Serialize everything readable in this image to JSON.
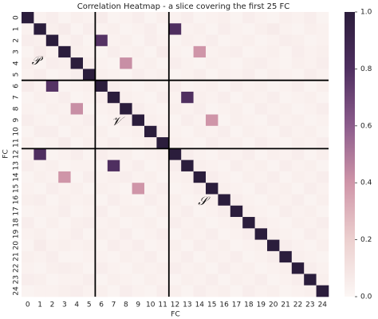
{
  "chart_data": {
    "type": "heatmap",
    "title": "Correlation Heatmap - a slice covering the first 25 FC",
    "x_label": "FC",
    "y_label": "FC",
    "x_categories": [
      "0",
      "1",
      "2",
      "3",
      "4",
      "5",
      "6",
      "7",
      "8",
      "9",
      "10",
      "11",
      "12",
      "13",
      "14",
      "15",
      "16",
      "17",
      "18",
      "19",
      "20",
      "21",
      "22",
      "23",
      "24"
    ],
    "y_categories": [
      "0",
      "1",
      "2",
      "3",
      "4",
      "5",
      "6",
      "7",
      "8",
      "9",
      "10",
      "11",
      "12",
      "13",
      "14",
      "15",
      "16",
      "17",
      "18",
      "19",
      "20",
      "21",
      "22",
      "23",
      "24"
    ],
    "values": [
      [
        1,
        0.03,
        0.05,
        0.02,
        0.04,
        0.03,
        0.06,
        0.02,
        0.03,
        0.05,
        0.02,
        0.04,
        0.03,
        0.05,
        0.02,
        0.03,
        0.04,
        0.02,
        0.05,
        0.03,
        0.02,
        0.04,
        0.03,
        0.05,
        0.02
      ],
      [
        0.03,
        1,
        0.04,
        0.06,
        0.02,
        0.05,
        0.03,
        0.04,
        0.02,
        0.03,
        0.05,
        0.02,
        0.8,
        0.03,
        0.04,
        0.02,
        0.05,
        0.03,
        0.02,
        0.04,
        0.06,
        0.03,
        0.02,
        0.04,
        0.03
      ],
      [
        0.05,
        0.04,
        1,
        0.03,
        0.05,
        0.02,
        0.78,
        0.03,
        0.04,
        0.02,
        0.05,
        0.03,
        0.02,
        0.04,
        0.03,
        0.05,
        0.02,
        0.03,
        0.04,
        0.02,
        0.03,
        0.05,
        0.04,
        0.02,
        0.03
      ],
      [
        0.02,
        0.06,
        0.03,
        1,
        0.04,
        0.03,
        0.02,
        0.05,
        0.03,
        0.04,
        0.02,
        0.06,
        0.03,
        0.02,
        0.4,
        0.03,
        0.04,
        0.05,
        0.02,
        0.03,
        0.04,
        0.02,
        0.05,
        0.03,
        0.04
      ],
      [
        0.04,
        0.02,
        0.05,
        0.04,
        1,
        0.05,
        0.03,
        0.02,
        0.42,
        0.03,
        0.04,
        0.02,
        0.05,
        0.03,
        0.02,
        0.04,
        0.03,
        0.02,
        0.04,
        0.05,
        0.03,
        0.02,
        0.04,
        0.03,
        0.05
      ],
      [
        0.03,
        0.05,
        0.02,
        0.03,
        0.05,
        1,
        0.04,
        0.03,
        0.02,
        0.05,
        0.03,
        0.04,
        0.02,
        0.03,
        0.05,
        0.02,
        0.04,
        0.03,
        0.05,
        0.02,
        0.04,
        0.03,
        0.02,
        0.05,
        0.03
      ],
      [
        0.06,
        0.03,
        0.78,
        0.02,
        0.03,
        0.04,
        1,
        0.05,
        0.03,
        0.02,
        0.04,
        0.03,
        0.05,
        0.02,
        0.03,
        0.04,
        0.02,
        0.05,
        0.03,
        0.04,
        0.02,
        0.03,
        0.05,
        0.02,
        0.04
      ],
      [
        0.02,
        0.04,
        0.03,
        0.05,
        0.02,
        0.03,
        0.05,
        1,
        0.04,
        0.03,
        0.02,
        0.05,
        0.03,
        0.8,
        0.04,
        0.03,
        0.05,
        0.02,
        0.04,
        0.03,
        0.05,
        0.02,
        0.03,
        0.04,
        0.02
      ],
      [
        0.03,
        0.02,
        0.04,
        0.03,
        0.42,
        0.02,
        0.03,
        0.04,
        1,
        0.05,
        0.03,
        0.02,
        0.04,
        0.03,
        0.05,
        0.02,
        0.03,
        0.04,
        0.02,
        0.05,
        0.03,
        0.04,
        0.02,
        0.03,
        0.05
      ],
      [
        0.05,
        0.03,
        0.02,
        0.04,
        0.03,
        0.05,
        0.02,
        0.03,
        0.05,
        1,
        0.04,
        0.03,
        0.02,
        0.05,
        0.03,
        0.4,
        0.02,
        0.04,
        0.03,
        0.02,
        0.05,
        0.03,
        0.04,
        0.02,
        0.03
      ],
      [
        0.02,
        0.05,
        0.05,
        0.02,
        0.04,
        0.03,
        0.04,
        0.02,
        0.03,
        0.04,
        1,
        0.05,
        0.03,
        0.02,
        0.04,
        0.03,
        0.05,
        0.02,
        0.04,
        0.03,
        0.02,
        0.05,
        0.03,
        0.04,
        0.02
      ],
      [
        0.04,
        0.02,
        0.03,
        0.06,
        0.02,
        0.04,
        0.03,
        0.05,
        0.02,
        0.03,
        0.05,
        1,
        0.04,
        0.03,
        0.02,
        0.05,
        0.03,
        0.04,
        0.02,
        0.05,
        0.03,
        0.02,
        0.04,
        0.03,
        0.05
      ],
      [
        0.03,
        0.8,
        0.02,
        0.03,
        0.05,
        0.02,
        0.05,
        0.03,
        0.04,
        0.02,
        0.03,
        0.04,
        1,
        0.05,
        0.03,
        0.02,
        0.04,
        0.03,
        0.05,
        0.02,
        0.04,
        0.03,
        0.05,
        0.02,
        0.04
      ],
      [
        0.05,
        0.03,
        0.04,
        0.02,
        0.03,
        0.03,
        0.02,
        0.8,
        0.03,
        0.05,
        0.02,
        0.03,
        0.05,
        1,
        0.04,
        0.03,
        0.02,
        0.05,
        0.03,
        0.04,
        0.02,
        0.05,
        0.03,
        0.04,
        0.02
      ],
      [
        0.02,
        0.04,
        0.03,
        0.4,
        0.02,
        0.05,
        0.03,
        0.04,
        0.05,
        0.03,
        0.04,
        0.02,
        0.03,
        0.04,
        1,
        0.05,
        0.03,
        0.02,
        0.04,
        0.03,
        0.05,
        0.02,
        0.04,
        0.03,
        0.05
      ],
      [
        0.03,
        0.02,
        0.05,
        0.03,
        0.04,
        0.02,
        0.04,
        0.03,
        0.02,
        0.4,
        0.03,
        0.05,
        0.02,
        0.03,
        0.05,
        1,
        0.04,
        0.03,
        0.02,
        0.05,
        0.03,
        0.04,
        0.02,
        0.05,
        0.03
      ],
      [
        0.04,
        0.05,
        0.02,
        0.04,
        0.03,
        0.04,
        0.02,
        0.05,
        0.03,
        0.02,
        0.05,
        0.03,
        0.04,
        0.02,
        0.03,
        0.04,
        1,
        0.05,
        0.03,
        0.02,
        0.04,
        0.03,
        0.05,
        0.02,
        0.04
      ],
      [
        0.02,
        0.03,
        0.03,
        0.05,
        0.02,
        0.03,
        0.05,
        0.02,
        0.04,
        0.04,
        0.02,
        0.04,
        0.03,
        0.05,
        0.02,
        0.03,
        0.05,
        1,
        0.04,
        0.03,
        0.02,
        0.05,
        0.03,
        0.04,
        0.02
      ],
      [
        0.05,
        0.02,
        0.04,
        0.02,
        0.04,
        0.05,
        0.03,
        0.04,
        0.02,
        0.03,
        0.04,
        0.02,
        0.05,
        0.03,
        0.04,
        0.02,
        0.03,
        0.04,
        1,
        0.05,
        0.03,
        0.02,
        0.04,
        0.03,
        0.05
      ],
      [
        0.03,
        0.04,
        0.02,
        0.03,
        0.05,
        0.02,
        0.04,
        0.03,
        0.05,
        0.02,
        0.03,
        0.05,
        0.02,
        0.04,
        0.03,
        0.05,
        0.02,
        0.03,
        0.05,
        1,
        0.04,
        0.03,
        0.02,
        0.05,
        0.03
      ],
      [
        0.02,
        0.06,
        0.03,
        0.04,
        0.03,
        0.04,
        0.02,
        0.05,
        0.03,
        0.05,
        0.02,
        0.03,
        0.04,
        0.02,
        0.05,
        0.03,
        0.04,
        0.02,
        0.03,
        0.04,
        1,
        0.05,
        0.03,
        0.02,
        0.04
      ],
      [
        0.04,
        0.03,
        0.05,
        0.02,
        0.02,
        0.03,
        0.03,
        0.02,
        0.04,
        0.03,
        0.05,
        0.02,
        0.03,
        0.05,
        0.02,
        0.04,
        0.03,
        0.05,
        0.02,
        0.03,
        0.05,
        1,
        0.04,
        0.03,
        0.02
      ],
      [
        0.03,
        0.02,
        0.04,
        0.05,
        0.04,
        0.02,
        0.05,
        0.03,
        0.02,
        0.04,
        0.03,
        0.04,
        0.05,
        0.03,
        0.04,
        0.02,
        0.05,
        0.03,
        0.04,
        0.02,
        0.03,
        0.04,
        1,
        0.05,
        0.03
      ],
      [
        0.05,
        0.04,
        0.02,
        0.03,
        0.03,
        0.05,
        0.02,
        0.04,
        0.03,
        0.02,
        0.04,
        0.03,
        0.02,
        0.04,
        0.03,
        0.05,
        0.02,
        0.04,
        0.03,
        0.05,
        0.02,
        0.03,
        0.05,
        1,
        0.04
      ],
      [
        0.02,
        0.03,
        0.03,
        0.04,
        0.05,
        0.03,
        0.04,
        0.02,
        0.05,
        0.03,
        0.02,
        0.05,
        0.04,
        0.02,
        0.05,
        0.03,
        0.04,
        0.02,
        0.05,
        0.03,
        0.04,
        0.02,
        0.03,
        0.04,
        1
      ]
    ],
    "clim": [
      0,
      1
    ],
    "colorbar_ticks": [
      {
        "value": 0,
        "label": "0.0"
      },
      0.2,
      0.4,
      0.6,
      0.8,
      {
        "value": 1,
        "label": "1.0"
      }
    ],
    "colorscale": [
      "#fcf7f5",
      "#ecd0cf",
      "#cf95a8",
      "#8c5c8c",
      "#4f2f60",
      "#2b1d3c"
    ],
    "dividers": [
      6,
      12
    ],
    "annotations": [
      "𝒫",
      "𝒱",
      "𝒮"
    ]
  }
}
